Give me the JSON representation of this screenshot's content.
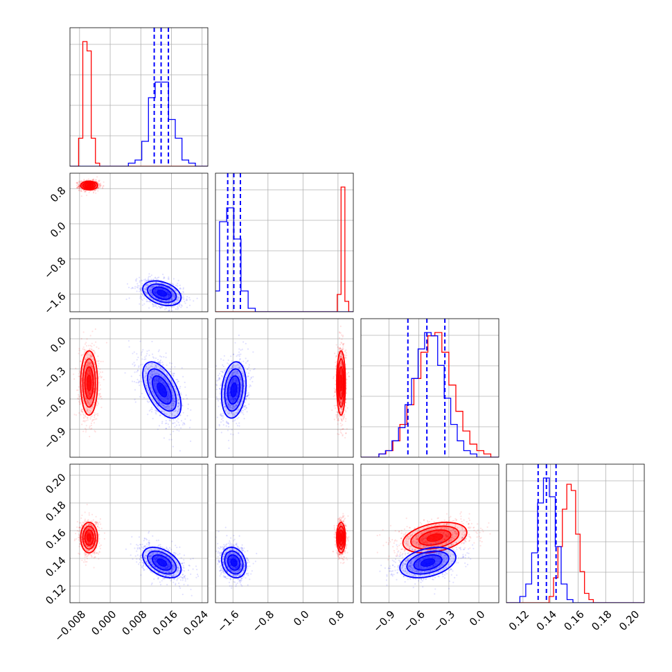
{
  "chart_data": {
    "type": "corner",
    "colors": {
      "red": "#ff0000",
      "blue": "#0000ff"
    },
    "series": [
      {
        "color": "#ff0000",
        "p0_mean": -0.0055,
        "p0_std": 0.0011,
        "p1_mean": 0.87,
        "p1_std": 0.05,
        "p2_mean": -0.44,
        "p2_std": 0.16,
        "p3_mean": 0.155,
        "p3_std": 0.0055,
        "hist_p0": [
          0,
          9,
          40,
          37,
          9,
          1,
          0
        ],
        "hist_p1": [
          0,
          5,
          36,
          3
        ],
        "hist_p2": [
          1,
          2,
          5,
          10,
          16,
          24,
          32,
          37,
          38,
          32,
          22,
          14,
          8,
          4,
          2,
          1
        ],
        "hist_p3": [
          0,
          2,
          8,
          18,
          30,
          38,
          36,
          22,
          10,
          3,
          1,
          0
        ]
      },
      {
        "color": "#0000ff",
        "p0_mean": 0.0135,
        "p0_std": 0.0025,
        "p1_mean": -1.58,
        "p1_std": 0.14,
        "p2_mean": -0.51,
        "p2_std": 0.14,
        "p3_mean": 0.137,
        "p3_std": 0.0055,
        "hist_p0": [
          1,
          2,
          8,
          22,
          27,
          27,
          15,
          9,
          2,
          1
        ],
        "hist_p1": [
          6,
          26,
          30,
          21,
          6,
          1
        ],
        "hist_p2": [
          1,
          2,
          5,
          9,
          16,
          24,
          33,
          38,
          37,
          28,
          18,
          10,
          5,
          2,
          1
        ],
        "hist_p3": [
          2,
          6,
          16,
          32,
          40,
          34,
          18,
          6,
          1
        ]
      }
    ],
    "quantile_lines": {
      "color": "#0000ff",
      "p0": [
        0.0115,
        0.0133,
        0.0152
      ],
      "p1": [
        -1.72,
        -1.58,
        -1.43
      ],
      "p2": [
        -0.71,
        -0.52,
        -0.34
      ],
      "p3": [
        0.131,
        0.137,
        0.144
      ]
    },
    "axes": [
      {
        "name": "p0",
        "range": [
          -0.0105,
          0.0255
        ],
        "ticks": [
          "-0.008",
          "0.000",
          "0.008",
          "0.016",
          "0.024"
        ],
        "tick_values": [
          -0.008,
          0.0,
          0.008,
          0.016,
          0.024
        ]
      },
      {
        "name": "p1",
        "range": [
          -2.0,
          1.15
        ],
        "ticks": [
          "-1.6",
          "-0.8",
          "0.0",
          "0.8"
        ],
        "tick_values": [
          -1.6,
          -0.8,
          0.0,
          0.8
        ]
      },
      {
        "name": "p2",
        "range": [
          -1.18,
          0.2
        ],
        "ticks": [
          "-0.9",
          "-0.6",
          "-0.3",
          "0.0"
        ],
        "tick_values": [
          -0.9,
          -0.6,
          -0.3,
          0.0
        ]
      },
      {
        "name": "p3",
        "range": [
          0.108,
          0.208
        ],
        "ticks": [
          "0.12",
          "0.14",
          "0.16",
          "0.18",
          "0.20"
        ],
        "tick_values": [
          0.12,
          0.14,
          0.16,
          0.18,
          0.2
        ]
      }
    ],
    "grid": true,
    "legend": "none"
  },
  "labels": {
    "p0": [
      "−0.008",
      "0.000",
      "0.008",
      "0.016",
      "0.024"
    ],
    "p1": [
      "−1.6",
      "−0.8",
      "0.0",
      "0.8"
    ],
    "p2": [
      "−0.9",
      "−0.6",
      "−0.3",
      "0.0"
    ],
    "p3": [
      "0.12",
      "0.14",
      "0.16",
      "0.18",
      "0.20"
    ]
  }
}
